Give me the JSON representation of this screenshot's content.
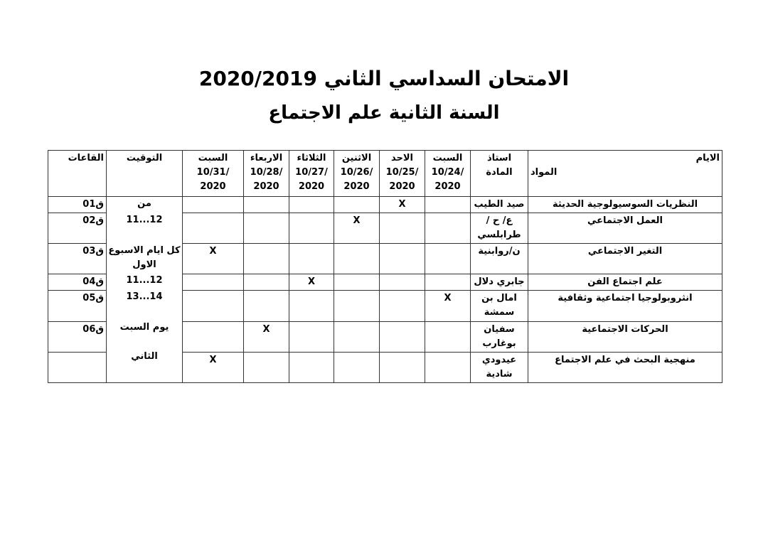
{
  "title": "الامتحان السداسي الثاني 2020/2019",
  "subtitle": "السنة الثانية علم الاجتماع",
  "headers": {
    "days": "الايام",
    "subjects": "المواد",
    "professor": "استاذ المادة",
    "dates": [
      {
        "day": "السبت",
        "date": "/10/24",
        "year": "2020"
      },
      {
        "day": "الاحد",
        "date": "/10/25",
        "year": "2020"
      },
      {
        "day": "الاثنين",
        "date": "/10/26",
        "year": "2020"
      },
      {
        "day": "الثلاثاء",
        "date": "/10/27",
        "year": "2020"
      },
      {
        "day": "الاربعاء",
        "date": "/10/28",
        "year": "2020"
      },
      {
        "day": "السبت",
        "date": "/10/31",
        "year": "2020"
      }
    ],
    "timing": "التوقيت",
    "rooms": "القاعات"
  },
  "mark": "X",
  "rows": [
    {
      "subject": "النظريات السوسيولوجية الحديثة",
      "professor": "صيد الطيب",
      "exam_col": 1,
      "room": "ق01"
    },
    {
      "subject": "العمل الاجتماعي",
      "professor": "ع/ ح / طرابلسي",
      "exam_col": 2,
      "room": "ق02"
    },
    {
      "subject": "التغير الاجتماعي",
      "professor": "ن/روابنية",
      "exam_col": 5,
      "room": "ق03"
    },
    {
      "subject": "علم اجتماع الفن",
      "professor": "جابري دلال",
      "exam_col": 3,
      "room": "ق04"
    },
    {
      "subject": "انثروبولوجيا اجتماعية وثقافية",
      "professor": "امال بن سمشة",
      "exam_col": 0,
      "room": "ق05"
    },
    {
      "subject": "الحركات الاجتماعية",
      "professor": "سفيان بوغارب",
      "exam_col": 4,
      "room": "ق06"
    },
    {
      "subject": "منهجية البحث في علم الاجتماع",
      "professor": "عيدودي شادية",
      "exam_col": 5,
      "room": ""
    }
  ],
  "timing_lines": [
    "من",
    "12...11",
    "كل ايام الاسبوع",
    "الاول",
    "12...11",
    "14...13",
    "يوم السبت",
    "الثاني"
  ]
}
